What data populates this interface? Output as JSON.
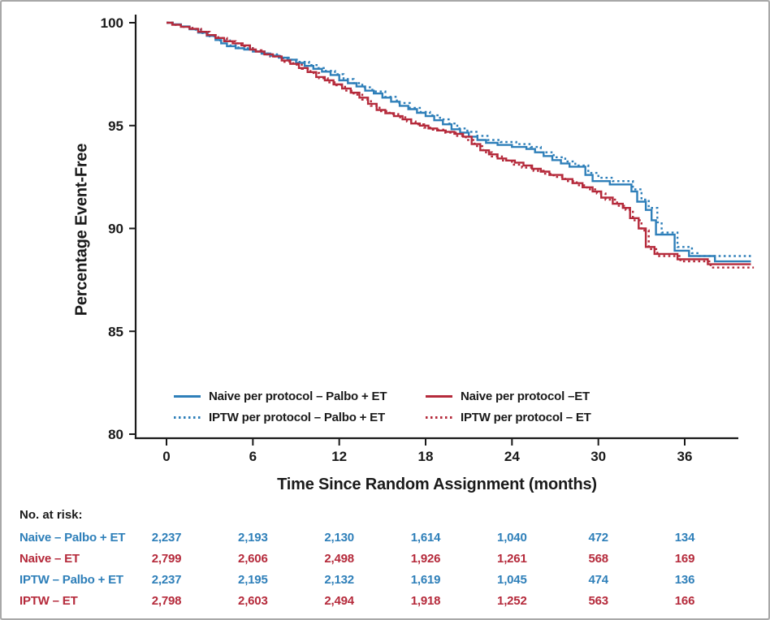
{
  "figure": {
    "background": "#ffffff",
    "border_color": "#a8a8a8",
    "axis_color": "#1a1a1a"
  },
  "chart_data": {
    "type": "line",
    "subtype": "kaplan-meier-step",
    "title": "",
    "xlabel": "Time Since Random Assignment (months)",
    "ylabel": "Percentage Event-Free",
    "xlim": [
      0,
      40.8
    ],
    "ylim": [
      80,
      100
    ],
    "x_ticks": [
      "0",
      "6",
      "12",
      "18",
      "24",
      "30",
      "36"
    ],
    "x_tick_values": [
      0,
      6,
      12,
      18,
      24,
      30,
      36
    ],
    "y_ticks": [
      "100",
      "95",
      "90",
      "85",
      "80"
    ],
    "y_tick_values": [
      100,
      95,
      90,
      85,
      80
    ],
    "grid": false,
    "legend_position": "inside-bottom",
    "colors": {
      "palbo": "#2E7FB9",
      "et": "#B52A3B"
    },
    "series": [
      {
        "id": "iptw-palbo",
        "name": "IPTW per protocol – Palbo + ET",
        "group": "palbo",
        "style": "dotted",
        "points": [
          [
            0,
            100
          ],
          [
            0.5,
            99.9
          ],
          [
            1.2,
            99.8
          ],
          [
            1.8,
            99.66
          ],
          [
            2.4,
            99.5
          ],
          [
            3,
            99.34
          ],
          [
            3.6,
            99.14
          ],
          [
            4.4,
            98.9
          ],
          [
            5,
            98.76
          ],
          [
            6.2,
            98.6
          ],
          [
            7,
            98.46
          ],
          [
            7.9,
            98.3
          ],
          [
            8.6,
            98.2
          ],
          [
            9.2,
            98.1
          ],
          [
            9.9,
            97.94
          ],
          [
            10.5,
            97.8
          ],
          [
            11,
            97.66
          ],
          [
            11.7,
            97.5
          ],
          [
            12.3,
            97.26
          ],
          [
            13,
            97.06
          ],
          [
            13.6,
            96.86
          ],
          [
            14.3,
            96.66
          ],
          [
            15.2,
            96.4
          ],
          [
            16,
            96.1
          ],
          [
            16.9,
            95.86
          ],
          [
            17.6,
            95.66
          ],
          [
            18.3,
            95.5
          ],
          [
            19,
            95.3
          ],
          [
            19.6,
            95.1
          ],
          [
            20.2,
            94.86
          ],
          [
            20.9,
            94.7
          ],
          [
            21.6,
            94.5
          ],
          [
            22.3,
            94.3
          ],
          [
            23.2,
            94.2
          ],
          [
            24.3,
            94.1
          ],
          [
            25.3,
            93.96
          ],
          [
            26,
            93.7
          ],
          [
            26.9,
            93.46
          ],
          [
            27.7,
            93.26
          ],
          [
            28.4,
            93.06
          ],
          [
            29.3,
            92.7
          ],
          [
            30,
            92.46
          ],
          [
            31,
            92.3
          ],
          [
            32.4,
            91.9
          ],
          [
            33,
            91.4
          ],
          [
            33.5,
            91.0
          ],
          [
            34.1,
            90.3
          ],
          [
            34.4,
            89.8
          ],
          [
            35.5,
            89.1
          ],
          [
            36.5,
            88.8
          ],
          [
            37,
            88.66
          ],
          [
            40.8,
            88.66
          ]
        ]
      },
      {
        "id": "iptw-et",
        "name": "IPTW per protocol – ET",
        "group": "et",
        "style": "dotted",
        "points": [
          [
            0,
            100
          ],
          [
            0.5,
            99.9
          ],
          [
            1.2,
            99.8
          ],
          [
            1.8,
            99.7
          ],
          [
            2.4,
            99.56
          ],
          [
            3,
            99.4
          ],
          [
            3.6,
            99.26
          ],
          [
            4.2,
            99.1
          ],
          [
            4.8,
            99.0
          ],
          [
            5.4,
            98.86
          ],
          [
            6,
            98.66
          ],
          [
            6.6,
            98.5
          ],
          [
            7.2,
            98.36
          ],
          [
            8.1,
            98.1
          ],
          [
            8.8,
            97.96
          ],
          [
            9.4,
            97.76
          ],
          [
            10,
            97.56
          ],
          [
            10.6,
            97.3
          ],
          [
            11.2,
            97.1
          ],
          [
            11.8,
            96.96
          ],
          [
            12.4,
            96.7
          ],
          [
            13,
            96.5
          ],
          [
            13.6,
            96.26
          ],
          [
            14.2,
            95.96
          ],
          [
            14.8,
            95.7
          ],
          [
            15.5,
            95.56
          ],
          [
            16.1,
            95.4
          ],
          [
            16.7,
            95.2
          ],
          [
            17.3,
            95.06
          ],
          [
            17.9,
            94.9
          ],
          [
            18.5,
            94.8
          ],
          [
            19.3,
            94.66
          ],
          [
            20.1,
            94.5
          ],
          [
            20.8,
            94.3
          ],
          [
            21.4,
            94.0
          ],
          [
            22,
            93.7
          ],
          [
            22.6,
            93.5
          ],
          [
            23.3,
            93.3
          ],
          [
            24,
            93.1
          ],
          [
            24.7,
            92.96
          ],
          [
            25.5,
            92.8
          ],
          [
            26.2,
            92.66
          ],
          [
            26.9,
            92.5
          ],
          [
            27.7,
            92.3
          ],
          [
            28.5,
            92.1
          ],
          [
            29.2,
            91.9
          ],
          [
            29.9,
            91.7
          ],
          [
            30.5,
            91.4
          ],
          [
            31.3,
            91.1
          ],
          [
            31.9,
            90.9
          ],
          [
            32.4,
            90.4
          ],
          [
            33,
            89.9
          ],
          [
            33.5,
            89.0
          ],
          [
            34.1,
            88.66
          ],
          [
            35.7,
            88.4
          ],
          [
            37.8,
            88.1
          ],
          [
            40.8,
            88.1
          ]
        ]
      },
      {
        "id": "naive-palbo",
        "name": "Naive per protocol – Palbo + ET",
        "group": "palbo",
        "style": "solid",
        "points": [
          [
            0,
            100
          ],
          [
            0.4,
            99.92
          ],
          [
            1,
            99.82
          ],
          [
            1.6,
            99.68
          ],
          [
            2.2,
            99.52
          ],
          [
            2.8,
            99.36
          ],
          [
            3.4,
            99.16
          ],
          [
            3.8,
            99.0
          ],
          [
            4.2,
            98.86
          ],
          [
            4.8,
            98.76
          ],
          [
            5.4,
            98.7
          ],
          [
            6,
            98.6
          ],
          [
            6.6,
            98.5
          ],
          [
            7.2,
            98.4
          ],
          [
            7.8,
            98.3
          ],
          [
            8.4,
            98.2
          ],
          [
            9,
            98.05
          ],
          [
            9.6,
            97.9
          ],
          [
            10.2,
            97.76
          ],
          [
            10.8,
            97.62
          ],
          [
            11.4,
            97.46
          ],
          [
            12,
            97.2
          ],
          [
            12.6,
            97.06
          ],
          [
            13.2,
            96.9
          ],
          [
            13.8,
            96.7
          ],
          [
            14.4,
            96.56
          ],
          [
            15,
            96.36
          ],
          [
            15.6,
            96.16
          ],
          [
            16.2,
            95.96
          ],
          [
            16.8,
            95.8
          ],
          [
            17.4,
            95.62
          ],
          [
            18,
            95.46
          ],
          [
            18.6,
            95.26
          ],
          [
            19.2,
            95.06
          ],
          [
            19.8,
            94.82
          ],
          [
            20.4,
            94.66
          ],
          [
            21,
            94.46
          ],
          [
            21.6,
            94.3
          ],
          [
            22.2,
            94.16
          ],
          [
            23,
            94.06
          ],
          [
            24,
            93.96
          ],
          [
            25,
            93.86
          ],
          [
            25.6,
            93.7
          ],
          [
            26.2,
            93.52
          ],
          [
            26.8,
            93.32
          ],
          [
            27.4,
            93.16
          ],
          [
            28,
            93.0
          ],
          [
            29.1,
            92.6
          ],
          [
            29.6,
            92.3
          ],
          [
            30.8,
            92.14
          ],
          [
            32.3,
            91.8
          ],
          [
            32.7,
            91.3
          ],
          [
            33.3,
            90.9
          ],
          [
            33.7,
            90.4
          ],
          [
            34,
            89.7
          ],
          [
            35.3,
            88.92
          ],
          [
            36.3,
            88.66
          ],
          [
            38.1,
            88.4
          ],
          [
            40.6,
            88.4
          ]
        ]
      },
      {
        "id": "naive-et",
        "name": "Naive per protocol –ET",
        "group": "et",
        "style": "solid",
        "points": [
          [
            0,
            100
          ],
          [
            0.4,
            99.9
          ],
          [
            1,
            99.8
          ],
          [
            1.6,
            99.7
          ],
          [
            2.2,
            99.56
          ],
          [
            2.8,
            99.4
          ],
          [
            3.4,
            99.26
          ],
          [
            4,
            99.1
          ],
          [
            4.6,
            99.0
          ],
          [
            5.2,
            98.9
          ],
          [
            5.8,
            98.7
          ],
          [
            6.2,
            98.6
          ],
          [
            6.8,
            98.46
          ],
          [
            7.4,
            98.36
          ],
          [
            8,
            98.16
          ],
          [
            8.6,
            98.0
          ],
          [
            9.2,
            97.8
          ],
          [
            9.8,
            97.6
          ],
          [
            10.4,
            97.36
          ],
          [
            11,
            97.2
          ],
          [
            11.6,
            97.0
          ],
          [
            12.2,
            96.8
          ],
          [
            12.8,
            96.6
          ],
          [
            13.4,
            96.36
          ],
          [
            14,
            96.06
          ],
          [
            14.6,
            95.76
          ],
          [
            15.2,
            95.6
          ],
          [
            15.8,
            95.46
          ],
          [
            16.4,
            95.3
          ],
          [
            17,
            95.1
          ],
          [
            17.6,
            95.0
          ],
          [
            18.2,
            94.86
          ],
          [
            18.8,
            94.76
          ],
          [
            19.4,
            94.7
          ],
          [
            20,
            94.6
          ],
          [
            20.6,
            94.46
          ],
          [
            21.2,
            94.1
          ],
          [
            21.8,
            93.8
          ],
          [
            22.4,
            93.6
          ],
          [
            23,
            93.4
          ],
          [
            23.6,
            93.3
          ],
          [
            24.2,
            93.2
          ],
          [
            24.8,
            93.06
          ],
          [
            25.4,
            92.9
          ],
          [
            26,
            92.76
          ],
          [
            26.6,
            92.6
          ],
          [
            27.5,
            92.4
          ],
          [
            28.2,
            92.2
          ],
          [
            28.9,
            92.0
          ],
          [
            29.6,
            91.8
          ],
          [
            30.2,
            91.5
          ],
          [
            31,
            91.2
          ],
          [
            31.7,
            91.0
          ],
          [
            32.2,
            90.5
          ],
          [
            32.8,
            90.0
          ],
          [
            33.3,
            89.1
          ],
          [
            33.9,
            88.76
          ],
          [
            35.5,
            88.5
          ],
          [
            37.6,
            88.26
          ],
          [
            40.6,
            88.26
          ]
        ]
      }
    ],
    "legend": {
      "columns": [
        [
          {
            "label": "Naive per protocol – Palbo + ET",
            "group": "palbo",
            "style": "solid"
          },
          {
            "label": "IPTW per protocol – Palbo + ET",
            "group": "palbo",
            "style": "dotted"
          }
        ],
        [
          {
            "label": "Naive per protocol –ET",
            "group": "et",
            "style": "solid"
          },
          {
            "label": "IPTW per protocol – ET",
            "group": "et",
            "style": "dotted"
          }
        ]
      ]
    },
    "at_risk": {
      "label": "No. at risk:",
      "time_points": [
        0,
        6,
        12,
        18,
        24,
        30,
        36
      ],
      "rows": [
        {
          "label": "Naive – Palbo + ET",
          "group": "palbo",
          "values": [
            "2,237",
            "2,193",
            "2,130",
            "1,614",
            "1,040",
            "472",
            "134"
          ]
        },
        {
          "label": "Naive – ET",
          "group": "et",
          "values": [
            "2,799",
            "2,606",
            "2,498",
            "1,926",
            "1,261",
            "568",
            "169"
          ]
        },
        {
          "label": "IPTW – Palbo + ET",
          "group": "palbo",
          "values": [
            "2,237",
            "2,195",
            "2,132",
            "1,619",
            "1,045",
            "474",
            "136"
          ]
        },
        {
          "label": "IPTW – ET",
          "group": "et",
          "values": [
            "2,798",
            "2,603",
            "2,494",
            "1,918",
            "1,252",
            "563",
            "166"
          ]
        }
      ]
    }
  }
}
